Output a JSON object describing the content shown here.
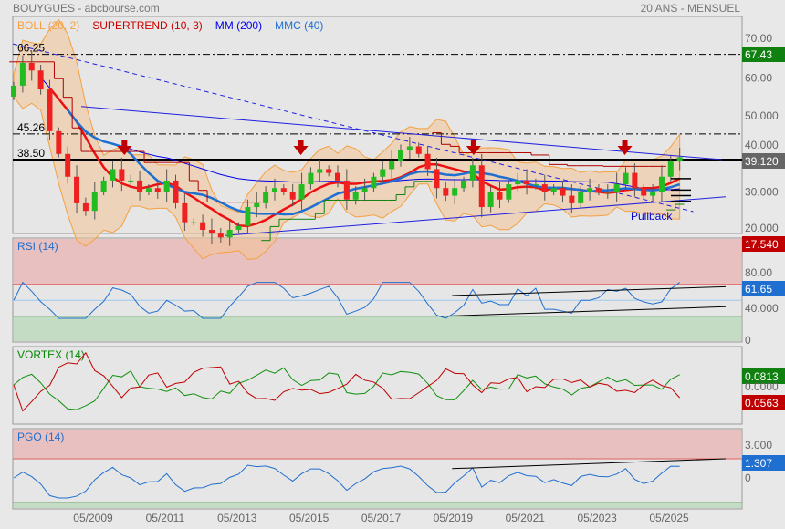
{
  "header": {
    "title": "BOUYGUES - abcbourse.com",
    "period": "20 ANS - MENSUEL"
  },
  "legend": [
    {
      "label": "BOLL (20, 2)",
      "color": "#f5a040"
    },
    {
      "label": "SUPERTREND (10, 3)",
      "color": "#cc0000"
    },
    {
      "label": "MM (200)",
      "color": "#0000ee"
    },
    {
      "label": "MMC (40)",
      "color": "#1f6fd0"
    }
  ],
  "chart_data": {
    "type": "candlestick",
    "title": "BOUYGUES",
    "x_ticks": [
      "05/2009",
      "05/2011",
      "05/2013",
      "05/2015",
      "05/2017",
      "05/2019",
      "05/2021",
      "05/2023",
      "05/2025"
    ],
    "x_tick_years": [
      2009.33,
      2011.33,
      2013.33,
      2015.33,
      2017.33,
      2019.33,
      2021.33,
      2023.33,
      2025.33
    ],
    "price": {
      "start_year": 2007.125,
      "step_years": 0.25,
      "closes": [
        58,
        64,
        62,
        57,
        46,
        40,
        34,
        27,
        25,
        30,
        33,
        36,
        33,
        33,
        30,
        31,
        30,
        33,
        27,
        22,
        22,
        20,
        19,
        18,
        20,
        21,
        26,
        27,
        30,
        31,
        30,
        28,
        32,
        35,
        36,
        35,
        33,
        28,
        30,
        31,
        34,
        36,
        38,
        41,
        42,
        40,
        36,
        31,
        29,
        31,
        33,
        37,
        26,
        30,
        28,
        32,
        33,
        32,
        32,
        30,
        31,
        29,
        27,
        30,
        31,
        30,
        30,
        32,
        35,
        31,
        29,
        30,
        34,
        38,
        39.12
      ],
      "y_ticks": [
        "70.00",
        "60.00",
        "50.000",
        "40.000",
        "30.000",
        "20.000"
      ],
      "y_tick_values": [
        70,
        60,
        50,
        40,
        30,
        20
      ],
      "ylim": [
        17,
        75
      ],
      "last": "39.120",
      "high_label": "67.43",
      "low_label": "17.540",
      "levels": [
        {
          "label": "66.25",
          "value": 66.25,
          "style": "dashdot"
        },
        {
          "label": "45.26",
          "value": 45.26,
          "style": "dashdot"
        },
        {
          "label": "38.50",
          "value": 38.5,
          "style": "solid"
        }
      ],
      "trendlines": [
        {
          "from": [
            2007.1,
            69
          ],
          "to": [
            2026.0,
            24.8
          ],
          "style": "dashed"
        },
        {
          "from": [
            2009.0,
            52.5
          ],
          "to": [
            2026.8,
            38.5
          ],
          "style": "solid"
        },
        {
          "from": [
            2013.0,
            18.5
          ],
          "to": [
            2026.9,
            28.7
          ],
          "style": "solid"
        }
      ],
      "sell_arrows": [
        2010.2,
        2015.1,
        2019.9,
        2024.1
      ],
      "annotation": "Pullback"
    },
    "rsi": {
      "label": "RSI (14)",
      "last": "61.65",
      "y_ticks": [
        "80.00",
        "40.000",
        "0"
      ],
      "y_tick_values": [
        80,
        40,
        0
      ]
    },
    "vortex": {
      "label": "VORTEX (14)",
      "last_plus": "0.0813",
      "last_minus": "0.0563",
      "y_ticks": [
        "0.0000"
      ]
    },
    "pgo": {
      "label": "PGO (14)",
      "last": "1.307",
      "y_ticks": [
        "3.000",
        "0"
      ],
      "y_tick_values": [
        3,
        0
      ]
    }
  }
}
